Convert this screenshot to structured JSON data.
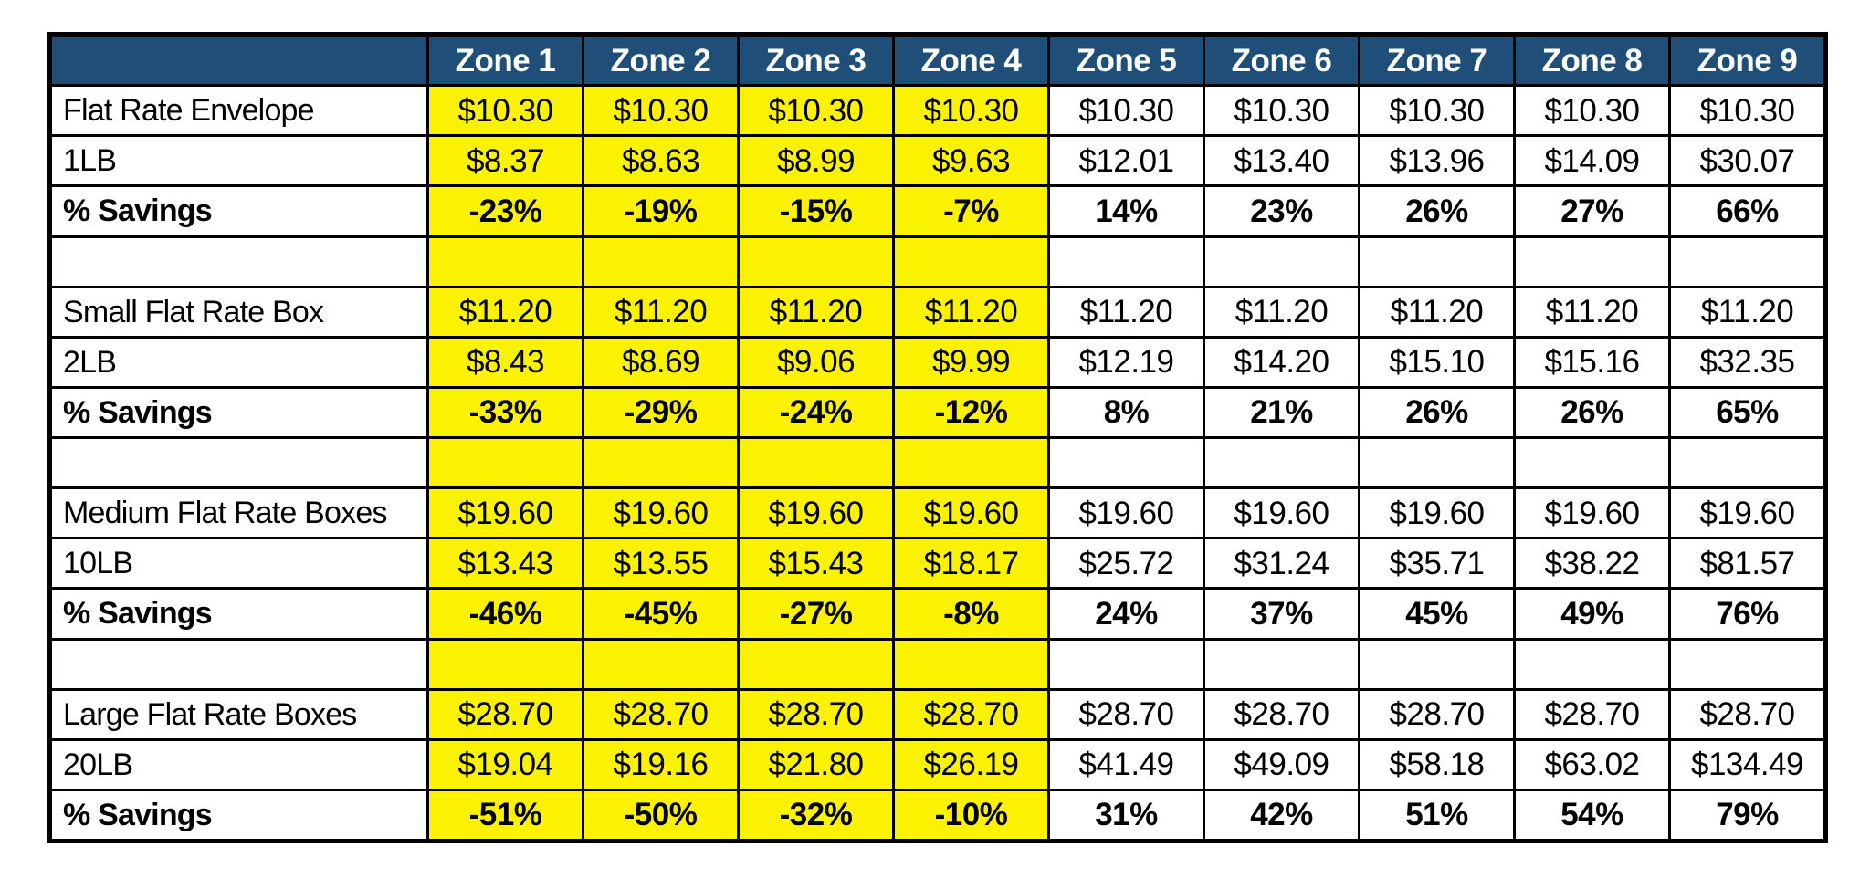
{
  "colors": {
    "header_bg": "#1F4E79",
    "header_text": "#FFFFFF",
    "highlight": "#FAF201",
    "grid_line": "#000000",
    "cell_bg": "#FFFFFF",
    "text": "#000000"
  },
  "chart_data": {
    "type": "table",
    "columns": [
      "",
      "Zone 1",
      "Zone 2",
      "Zone 3",
      "Zone 4",
      "Zone 5",
      "Zone 6",
      "Zone 7",
      "Zone 8",
      "Zone 9"
    ],
    "highlighted_zone_columns": 4,
    "legend_note_highlight": "Zones 1-4 highlighted yellow",
    "rows": [
      {
        "label": "Flat Rate Envelope",
        "style": "regular",
        "cells": [
          "$10.30",
          "$10.30",
          "$10.30",
          "$10.30",
          "$10.30",
          "$10.30",
          "$10.30",
          "$10.30",
          "$10.30"
        ]
      },
      {
        "label": "1LB",
        "style": "regular",
        "cells": [
          "$8.37",
          "$8.63",
          "$8.99",
          "$9.63",
          "$12.01",
          "$13.40",
          "$13.96",
          "$14.09",
          "$30.07"
        ]
      },
      {
        "label": "% Savings",
        "style": "bold",
        "cells": [
          "-23%",
          "-19%",
          "-15%",
          "-7%",
          "14%",
          "23%",
          "26%",
          "27%",
          "66%"
        ]
      },
      {
        "label": "",
        "style": "spacer",
        "cells": [
          "",
          "",
          "",
          "",
          "",
          "",
          "",
          "",
          ""
        ]
      },
      {
        "label": "Small Flat Rate Box",
        "style": "regular",
        "cells": [
          "$11.20",
          "$11.20",
          "$11.20",
          "$11.20",
          "$11.20",
          "$11.20",
          "$11.20",
          "$11.20",
          "$11.20"
        ]
      },
      {
        "label": "2LB",
        "style": "regular",
        "cells": [
          "$8.43",
          "$8.69",
          "$9.06",
          "$9.99",
          "$12.19",
          "$14.20",
          "$15.10",
          "$15.16",
          "$32.35"
        ]
      },
      {
        "label": "% Savings",
        "style": "bold",
        "cells": [
          "-33%",
          "-29%",
          "-24%",
          "-12%",
          "8%",
          "21%",
          "26%",
          "26%",
          "65%"
        ]
      },
      {
        "label": "",
        "style": "spacer",
        "cells": [
          "",
          "",
          "",
          "",
          "",
          "",
          "",
          "",
          ""
        ]
      },
      {
        "label": "Medium Flat Rate Boxes",
        "style": "regular",
        "cells": [
          "$19.60",
          "$19.60",
          "$19.60",
          "$19.60",
          "$19.60",
          "$19.60",
          "$19.60",
          "$19.60",
          "$19.60"
        ]
      },
      {
        "label": "10LB",
        "style": "regular",
        "cells": [
          "$13.43",
          "$13.55",
          "$15.43",
          "$18.17",
          "$25.72",
          "$31.24",
          "$35.71",
          "$38.22",
          "$81.57"
        ]
      },
      {
        "label": "% Savings",
        "style": "bold",
        "cells": [
          "-46%",
          "-45%",
          "-27%",
          "-8%",
          "24%",
          "37%",
          "45%",
          "49%",
          "76%"
        ]
      },
      {
        "label": "",
        "style": "spacer",
        "cells": [
          "",
          "",
          "",
          "",
          "",
          "",
          "",
          "",
          ""
        ]
      },
      {
        "label": "Large Flat Rate Boxes",
        "style": "regular",
        "cells": [
          "$28.70",
          "$28.70",
          "$28.70",
          "$28.70",
          "$28.70",
          "$28.70",
          "$28.70",
          "$28.70",
          "$28.70"
        ]
      },
      {
        "label": "20LB",
        "style": "regular",
        "cells": [
          "$19.04",
          "$19.16",
          "$21.80",
          "$26.19",
          "$41.49",
          "$49.09",
          "$58.18",
          "$63.02",
          "$134.49"
        ]
      },
      {
        "label": "% Savings",
        "style": "bold",
        "cells": [
          "-51%",
          "-50%",
          "-32%",
          "-10%",
          "31%",
          "42%",
          "51%",
          "54%",
          "79%"
        ]
      }
    ]
  }
}
